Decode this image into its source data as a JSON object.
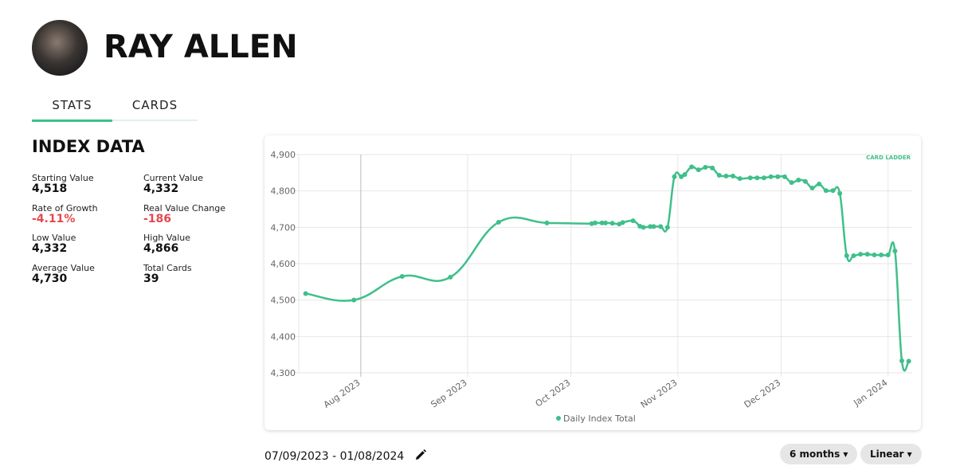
{
  "header": {
    "title": "RAY ALLEN"
  },
  "tabs": [
    "STATS",
    "CARDS"
  ],
  "index_data": {
    "title": "INDEX DATA",
    "stats": [
      {
        "label": "Starting Value",
        "value": "4,518"
      },
      {
        "label": "Current Value",
        "value": "4,332"
      },
      {
        "label": "Rate of Growth",
        "value": "-4.11%"
      },
      {
        "label": "Real Value Change",
        "value": "-186"
      },
      {
        "label": "Low Value",
        "value": "4,332"
      },
      {
        "label": "High Value",
        "value": "4,866"
      },
      {
        "label": "Average Value",
        "value": "4,730"
      },
      {
        "label": "Total Cards",
        "value": "39"
      }
    ]
  },
  "chart_data": {
    "type": "line",
    "logo": "CARD LADDER",
    "x": [
      "2023-07-16",
      "2023-07-30",
      "2023-08-13",
      "2023-08-27",
      "2023-09-10",
      "2023-09-24",
      "2023-10-07",
      "2023-10-08",
      "2023-10-10",
      "2023-10-11",
      "2023-10-13",
      "2023-10-15",
      "2023-10-16",
      "2023-10-19",
      "2023-10-21",
      "2023-10-22",
      "2023-10-24",
      "2023-10-25",
      "2023-10-27",
      "2023-10-29",
      "2023-10-31",
      "2023-11-02",
      "2023-11-03",
      "2023-11-05",
      "2023-11-07",
      "2023-11-09",
      "2023-11-11",
      "2023-11-13",
      "2023-11-15",
      "2023-11-17",
      "2023-11-19",
      "2023-11-22",
      "2023-11-24",
      "2023-11-26",
      "2023-11-28",
      "2023-11-30",
      "2023-12-02",
      "2023-12-04",
      "2023-12-06",
      "2023-12-08",
      "2023-12-10",
      "2023-12-12",
      "2023-12-14",
      "2023-12-16",
      "2023-12-18",
      "2023-12-20",
      "2023-12-22",
      "2023-12-24",
      "2023-12-26",
      "2023-12-28",
      "2023-12-30",
      "2024-01-01",
      "2024-01-03",
      "2024-01-05",
      "2024-01-07"
    ],
    "series": [
      {
        "name": "Daily Index Total",
        "color": "#3fbf8b",
        "values": [
          4518,
          4500,
          4565,
          4563,
          4714,
          4712,
          4710,
          4712,
          4712,
          4712,
          4711,
          4709,
          4713,
          4718,
          4703,
          4700,
          4702,
          4702,
          4702,
          4700,
          4839,
          4839,
          4845,
          4866,
          4858,
          4865,
          4863,
          4843,
          4841,
          4841,
          4834,
          4836,
          4836,
          4836,
          4839,
          4839,
          4839,
          4823,
          4830,
          4826,
          4808,
          4819,
          4801,
          4801,
          4793,
          4622,
          4622,
          4626,
          4626,
          4624,
          4624,
          4624,
          4635,
          4333,
          4332
        ]
      }
    ],
    "xlim": [
      "2023-07-14",
      "2024-01-08"
    ],
    "xticks": [
      {
        "value": "2023-08-01",
        "label": "Aug 2023"
      },
      {
        "value": "2023-09-01",
        "label": "Sep 2023"
      },
      {
        "value": "2023-10-01",
        "label": "Oct 2023"
      },
      {
        "value": "2023-11-01",
        "label": "Nov 2023"
      },
      {
        "value": "2023-12-01",
        "label": "Dec 2023"
      },
      {
        "value": "2024-01-01",
        "label": "Jan 2024"
      }
    ],
    "ylim": [
      4300,
      4900
    ],
    "yticks": [
      {
        "value": 4300,
        "label": "4,300"
      },
      {
        "value": 4400,
        "label": "4,400"
      },
      {
        "value": 4500,
        "label": "4,500"
      },
      {
        "value": 4600,
        "label": "4,600"
      },
      {
        "value": 4700,
        "label": "4,700"
      },
      {
        "value": 4800,
        "label": "4,800"
      },
      {
        "value": 4900,
        "label": "4,900"
      }
    ],
    "grid": true
  },
  "date_range": "07/09/2023 - 01/08/2024",
  "controls": [
    "6 months",
    "Linear"
  ]
}
